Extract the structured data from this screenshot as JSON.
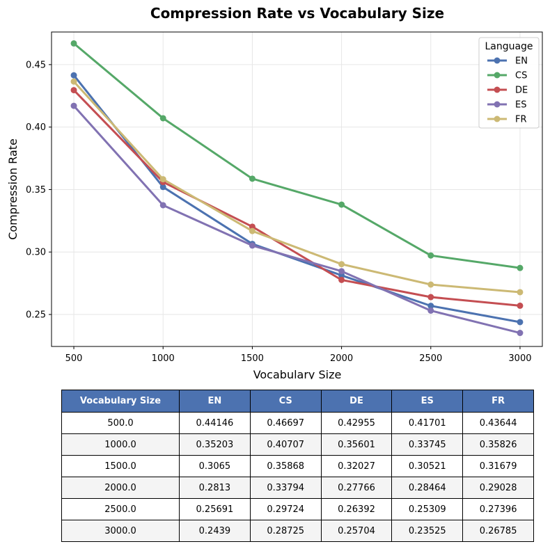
{
  "chart_data": {
    "type": "line",
    "title": "Compression Rate vs Vocabulary Size",
    "xlabel": "Vocabulary Size",
    "ylabel": "Compression Rate",
    "x": [
      500,
      1000,
      1500,
      2000,
      2500,
      3000
    ],
    "x_ticks": [
      "500",
      "1000",
      "1500",
      "2000",
      "2500",
      "3000"
    ],
    "y_ticks": [
      "0.25",
      "0.30",
      "0.35",
      "0.40",
      "0.45"
    ],
    "y_tick_values": [
      0.25,
      0.3,
      0.35,
      0.4,
      0.45
    ],
    "xlim": [
      375,
      3125
    ],
    "ylim": [
      0.2244,
      0.4761
    ],
    "grid": true,
    "legend": {
      "title": "Language",
      "placement": "top-right"
    },
    "series": [
      {
        "name": "EN",
        "color": "#4c72b0",
        "values": [
          0.44146,
          0.35203,
          0.3065,
          0.2813,
          0.25691,
          0.2439
        ]
      },
      {
        "name": "CS",
        "color": "#55a868",
        "values": [
          0.46697,
          0.40707,
          0.35868,
          0.33794,
          0.29724,
          0.28725
        ]
      },
      {
        "name": "DE",
        "color": "#c44e52",
        "values": [
          0.42955,
          0.35601,
          0.32027,
          0.27766,
          0.26392,
          0.25704
        ]
      },
      {
        "name": "ES",
        "color": "#8172b2",
        "values": [
          0.41701,
          0.33745,
          0.30521,
          0.28464,
          0.25309,
          0.23525
        ]
      },
      {
        "name": "FR",
        "color": "#ccb974",
        "values": [
          0.43644,
          0.35826,
          0.31679,
          0.29028,
          0.27396,
          0.26785
        ]
      }
    ]
  },
  "table": {
    "header_color": "#4c72b0",
    "headers": [
      "Vocabulary Size",
      "EN",
      "CS",
      "DE",
      "ES",
      "FR"
    ],
    "rows": [
      [
        "500.0",
        "0.44146",
        "0.46697",
        "0.42955",
        "0.41701",
        "0.43644"
      ],
      [
        "1000.0",
        "0.35203",
        "0.40707",
        "0.35601",
        "0.33745",
        "0.35826"
      ],
      [
        "1500.0",
        "0.3065",
        "0.35868",
        "0.32027",
        "0.30521",
        "0.31679"
      ],
      [
        "2000.0",
        "0.2813",
        "0.33794",
        "0.27766",
        "0.28464",
        "0.29028"
      ],
      [
        "2500.0",
        "0.25691",
        "0.29724",
        "0.26392",
        "0.25309",
        "0.27396"
      ],
      [
        "3000.0",
        "0.2439",
        "0.28725",
        "0.25704",
        "0.23525",
        "0.26785"
      ]
    ]
  }
}
